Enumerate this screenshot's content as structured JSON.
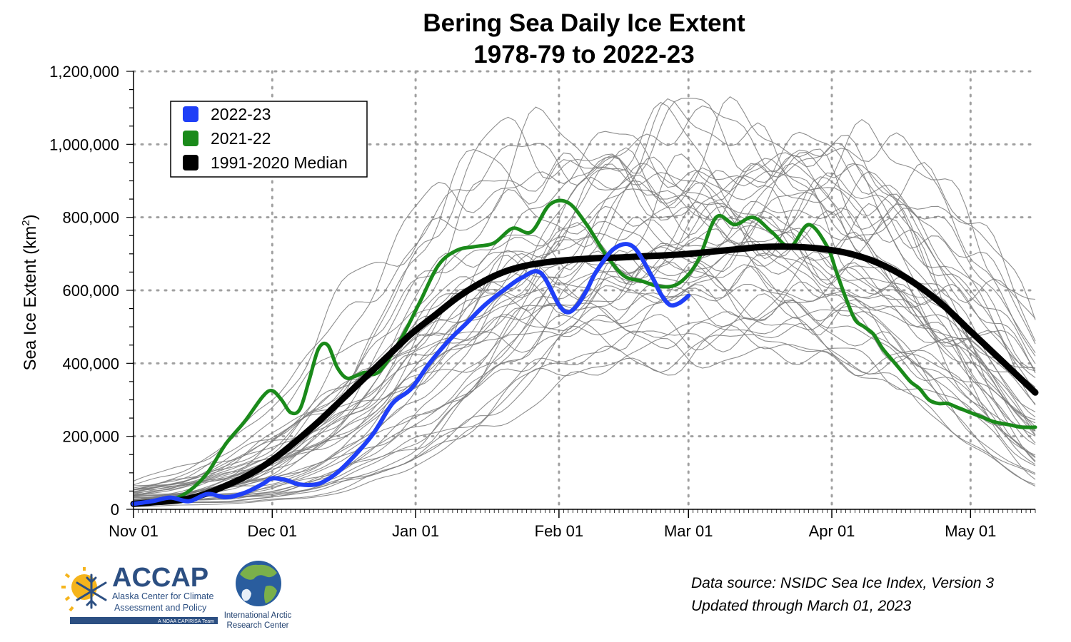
{
  "chart_data": {
    "type": "line",
    "title": "Bering Sea Daily Ice Extent",
    "subtitle": "1978-79 to 2022-23",
    "ylabel": "Sea Ice Extent (km",
    "ylabel_sup": "2",
    "ylabel_end": ")",
    "xlabel": "",
    "ylim": [
      0,
      1200000
    ],
    "xlim": [
      0,
      195
    ],
    "x_unit": "days since Nov 01",
    "x_ticks": [
      {
        "day": 0,
        "label": "Nov 01"
      },
      {
        "day": 30,
        "label": "Dec 01"
      },
      {
        "day": 61,
        "label": "Jan 01"
      },
      {
        "day": 92,
        "label": "Feb 01"
      },
      {
        "day": 120,
        "label": "Mar 01"
      },
      {
        "day": 151,
        "label": "Apr 01"
      },
      {
        "day": 181,
        "label": "May 01"
      }
    ],
    "y_ticks": [
      {
        "value": 0,
        "label": "0"
      },
      {
        "value": 200000,
        "label": "200,000"
      },
      {
        "value": 400000,
        "label": "400,000"
      },
      {
        "value": 600000,
        "label": "600,000"
      },
      {
        "value": 800000,
        "label": "800,000"
      },
      {
        "value": 1000000,
        "label": "1,000,000"
      },
      {
        "value": 1200000,
        "label": "1,200,000"
      }
    ],
    "grid": true,
    "legend_position": "top-left",
    "series": [
      {
        "name": "2022-23",
        "color": "#1f3ff7",
        "width": 6,
        "x": [
          0,
          4,
          8,
          12,
          16,
          20,
          24,
          28,
          30,
          33,
          36,
          40,
          44,
          48,
          52,
          56,
          60,
          64,
          68,
          72,
          76,
          80,
          84,
          88,
          92,
          94,
          96,
          98,
          100,
          104,
          108,
          112,
          114,
          116,
          118,
          120
        ],
        "y": [
          15000,
          22000,
          32000,
          22000,
          42000,
          33000,
          45000,
          70000,
          85000,
          80000,
          68000,
          70000,
          100000,
          150000,
          210000,
          290000,
          330000,
          400000,
          460000,
          510000,
          560000,
          600000,
          635000,
          648000,
          560000,
          540000,
          560000,
          600000,
          650000,
          715000,
          720000,
          640000,
          590000,
          560000,
          565000,
          585000
        ]
      },
      {
        "name": "2021-22",
        "color": "#1a8a1a",
        "width": 5,
        "x": [
          0,
          4,
          8,
          12,
          16,
          20,
          24,
          28,
          30,
          32,
          34,
          36,
          38,
          40,
          42,
          44,
          46,
          48,
          50,
          52,
          54,
          58,
          62,
          66,
          70,
          74,
          78,
          82,
          86,
          90,
          94,
          98,
          102,
          106,
          110,
          114,
          118,
          122,
          126,
          130,
          134,
          138,
          142,
          146,
          150,
          152,
          154,
          156,
          158,
          160,
          162,
          164,
          166,
          168,
          170,
          172,
          174,
          176,
          178,
          180,
          182,
          184,
          186,
          188,
          190,
          192,
          195
        ],
        "y": [
          15000,
          18000,
          25000,
          50000,
          100000,
          180000,
          240000,
          310000,
          325000,
          300000,
          265000,
          275000,
          355000,
          440000,
          450000,
          390000,
          360000,
          365000,
          375000,
          370000,
          390000,
          470000,
          570000,
          670000,
          710000,
          720000,
          730000,
          770000,
          760000,
          835000,
          840000,
          780000,
          700000,
          640000,
          625000,
          610000,
          620000,
          680000,
          800000,
          780000,
          800000,
          760000,
          720000,
          780000,
          720000,
          650000,
          580000,
          520000,
          500000,
          480000,
          440000,
          410000,
          380000,
          350000,
          330000,
          300000,
          290000,
          290000,
          280000,
          270000,
          260000,
          250000,
          240000,
          235000,
          230000,
          225000,
          225000
        ]
      },
      {
        "name": "1991-2020 Median",
        "color": "#000000",
        "width": 9,
        "x": [
          0,
          5,
          10,
          15,
          20,
          25,
          30,
          35,
          40,
          45,
          50,
          55,
          60,
          65,
          70,
          75,
          80,
          85,
          90,
          95,
          100,
          105,
          110,
          115,
          120,
          125,
          130,
          135,
          140,
          145,
          150,
          155,
          160,
          165,
          170,
          175,
          180,
          185,
          190,
          195
        ],
        "y": [
          15000,
          20000,
          25000,
          40000,
          65000,
          95000,
          135000,
          185000,
          240000,
          300000,
          360000,
          420000,
          480000,
          530000,
          580000,
          620000,
          650000,
          668000,
          678000,
          684000,
          688000,
          690000,
          693000,
          696000,
          700000,
          706000,
          712000,
          718000,
          720000,
          718000,
          712000,
          700000,
          680000,
          650000,
          610000,
          560000,
          500000,
          440000,
          380000,
          320000
        ]
      }
    ]
  },
  "legend": {
    "items": [
      {
        "label": "2022-23",
        "color": "#1f3ff7"
      },
      {
        "label": "2021-22",
        "color": "#1a8a1a"
      },
      {
        "label": "1991-2020 Median",
        "color": "#000000"
      }
    ]
  },
  "source": {
    "line1": "Data source: NSIDC Sea Ice Index, Version 3",
    "line2": "Updated through March 01, 2023"
  },
  "logos": {
    "accap_name": "ACCAP",
    "accap_line1": "Alaska Center for Climate",
    "accap_line2": "Assessment and Policy",
    "accap_tag": "A NOAA CAP/RISA Team",
    "iarc_line1": "International Arctic",
    "iarc_line2": "Research Center"
  },
  "colors": {
    "historical_line": "#7a7a7a",
    "grid": "#a0a0a0",
    "accap_blue": "#2c4f82",
    "sun_yellow": "#f5b41c"
  }
}
